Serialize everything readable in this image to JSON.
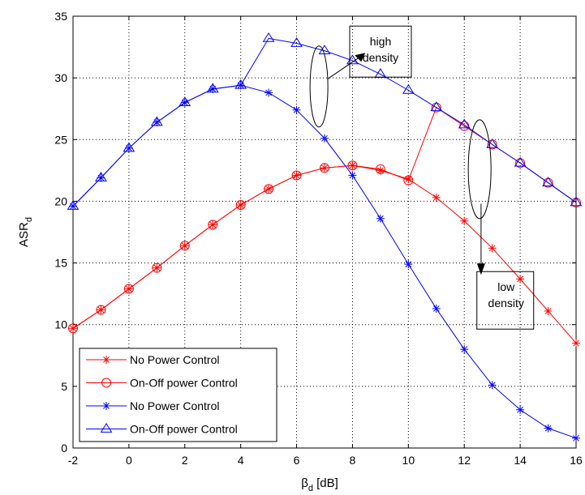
{
  "chart_data": {
    "type": "line",
    "xlabel": "β",
    "xlabel_sub": "d",
    "xlabel_suffix": " [dB]",
    "ylabel": "ASR",
    "ylabel_sub": "d",
    "xlim": [
      -2,
      16
    ],
    "ylim": [
      0,
      35
    ],
    "xticks": [
      -2,
      0,
      2,
      4,
      6,
      8,
      10,
      12,
      14,
      16
    ],
    "yticks": [
      0,
      5,
      10,
      15,
      20,
      25,
      30,
      35
    ],
    "grid": true,
    "legend_position": "bottom-left",
    "x": [
      -2,
      -1,
      0,
      1,
      2,
      3,
      4,
      5,
      6,
      7,
      8,
      9,
      10,
      11,
      12,
      13,
      14,
      15,
      16
    ],
    "series": [
      {
        "name": "No Power Control",
        "color": "#ff0000",
        "marker": "star",
        "values": [
          9.7,
          11.2,
          12.9,
          14.6,
          16.4,
          18.1,
          19.7,
          21.0,
          22.1,
          22.7,
          22.9,
          22.5,
          21.8,
          20.3,
          18.4,
          16.2,
          13.7,
          11.1,
          8.5
        ]
      },
      {
        "name": "On-Off power Control",
        "color": "#ff0000",
        "marker": "circle",
        "values": [
          9.7,
          11.2,
          12.9,
          14.6,
          16.4,
          18.1,
          19.7,
          21.0,
          22.1,
          22.7,
          22.9,
          22.6,
          21.7,
          27.6,
          26.1,
          24.6,
          23.1,
          21.5,
          19.9
        ]
      },
      {
        "name": "No Power Control",
        "color": "#0000ff",
        "marker": "star",
        "values": [
          19.6,
          21.9,
          24.3,
          26.4,
          28.0,
          29.1,
          29.4,
          28.8,
          27.4,
          25.1,
          22.1,
          18.6,
          14.9,
          11.3,
          8.0,
          5.1,
          3.1,
          1.6,
          0.8
        ]
      },
      {
        "name": "On-Off power Control",
        "color": "#0000ff",
        "marker": "triangle",
        "values": [
          19.6,
          21.9,
          24.3,
          26.4,
          28.0,
          29.1,
          29.4,
          33.2,
          32.8,
          32.2,
          31.4,
          30.3,
          29.0,
          27.6,
          26.2,
          24.6,
          23.1,
          21.5,
          19.9
        ]
      }
    ],
    "annotations": [
      {
        "lines": [
          "high",
          "density"
        ],
        "color": "#000000"
      },
      {
        "lines": [
          "low",
          "density"
        ],
        "color": "#000000"
      }
    ]
  }
}
